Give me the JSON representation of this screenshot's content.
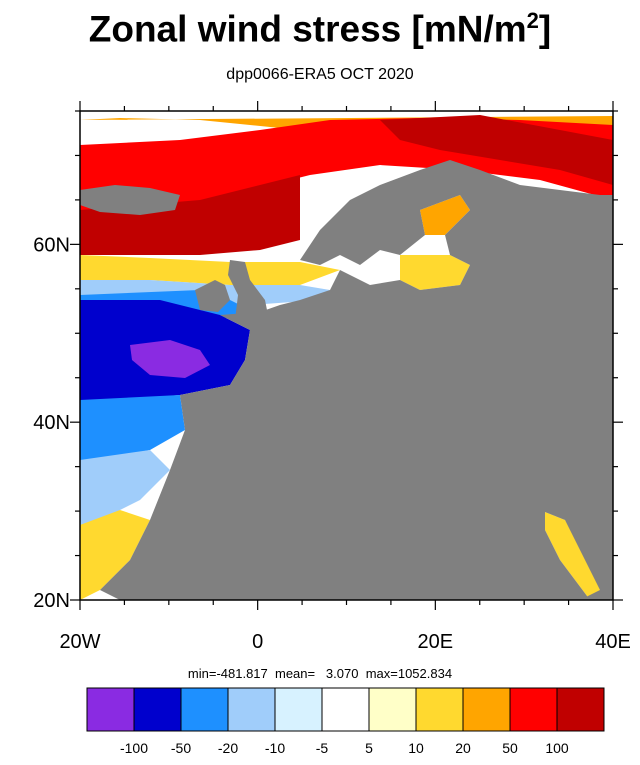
{
  "title": {
    "main": "Zonal wind stress [mN/m",
    "sup": "2",
    "close": "]"
  },
  "subtitle": "dpp0066-ERA5  OCT 2020",
  "stats": "min=-481.817  mean=   3.070  max=1052.834",
  "map": {
    "lon_range": [
      -20,
      40
    ],
    "lat_range": [
      20,
      75
    ],
    "land_color": "#808080",
    "x_ticks": [
      {
        "value": -20,
        "label": "20W"
      },
      {
        "value": 0,
        "label": "0"
      },
      {
        "value": 20,
        "label": "20E"
      },
      {
        "value": 40,
        "label": "40E"
      }
    ],
    "y_ticks": [
      {
        "value": 20,
        "label": "20N"
      },
      {
        "value": 40,
        "label": "40N"
      },
      {
        "value": 60,
        "label": "60N"
      }
    ]
  },
  "colorbar": {
    "colors": [
      "#8a2be2",
      "#0000cd",
      "#1e90ff",
      "#a0cdfa",
      "#d7f2ff",
      "#ffffff",
      "#ffffc8",
      "#ffd92f",
      "#ffa500",
      "#ff0000",
      "#c00000"
    ],
    "labels": [
      "-100",
      "-50",
      "-20",
      "-10",
      "-5",
      "5",
      "10",
      "20",
      "50",
      "100"
    ]
  }
}
